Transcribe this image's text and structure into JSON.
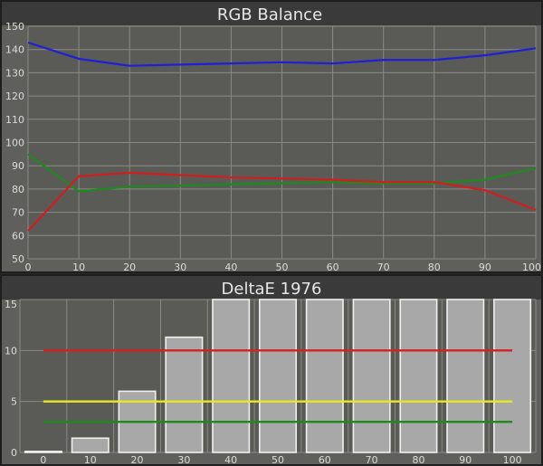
{
  "chart_data": [
    {
      "type": "line",
      "title": "RGB Balance",
      "xlabel": "",
      "ylabel": "",
      "x": [
        0,
        10,
        20,
        30,
        40,
        50,
        60,
        70,
        80,
        90,
        100
      ],
      "xticks": [
        "0",
        "10",
        "20",
        "30",
        "40",
        "50",
        "60",
        "70",
        "80",
        "90",
        "100"
      ],
      "yticks": [
        "50",
        "60",
        "70",
        "80",
        "90",
        "100",
        "110",
        "120",
        "130",
        "140",
        "150"
      ],
      "xlim": [
        0,
        100
      ],
      "ylim": [
        50,
        150
      ],
      "grid": true,
      "series": [
        {
          "color": "#1f1fd6",
          "values": [
            143,
            136,
            133,
            133.5,
            134,
            134.5,
            134,
            135.5,
            135.5,
            137.5,
            140.5
          ]
        },
        {
          "color": "#1e8a1e",
          "values": [
            95,
            79,
            81,
            81.5,
            82,
            82.5,
            83,
            82.5,
            82.5,
            84,
            89
          ]
        },
        {
          "color": "#d21e1e",
          "values": [
            62,
            85.5,
            87,
            86,
            85,
            84.5,
            84,
            83,
            83,
            79.5,
            71
          ]
        }
      ]
    },
    {
      "type": "bar",
      "title": "DeltaE 1976",
      "xlabel": "",
      "ylabel": "",
      "categories": [
        "0",
        "10",
        "20",
        "30",
        "40",
        "50",
        "60",
        "70",
        "80",
        "90",
        "100"
      ],
      "yticks": [
        "0",
        "5",
        "10",
        "15"
      ],
      "ylim": [
        0,
        15
      ],
      "grid": true,
      "values": [
        0.1,
        1.4,
        6,
        11.3,
        15,
        15,
        15,
        15,
        15,
        15,
        15
      ],
      "reference_lines": [
        {
          "color": "#d81e1e",
          "value": 10
        },
        {
          "color": "#e8e81e",
          "value": 5
        },
        {
          "color": "#1e8a1e",
          "value": 3
        }
      ]
    }
  ],
  "colors": {
    "page_bg": "#2a2a2a",
    "panel_bg": "#5f605b",
    "title_bg": "#3a3a3a",
    "plot_bg": "#5a5b56",
    "grid": "#8a8a86",
    "bar_fill": "#a8a8a8",
    "bar_stroke": "#f0f0f0",
    "text": "#dcdcdc"
  }
}
